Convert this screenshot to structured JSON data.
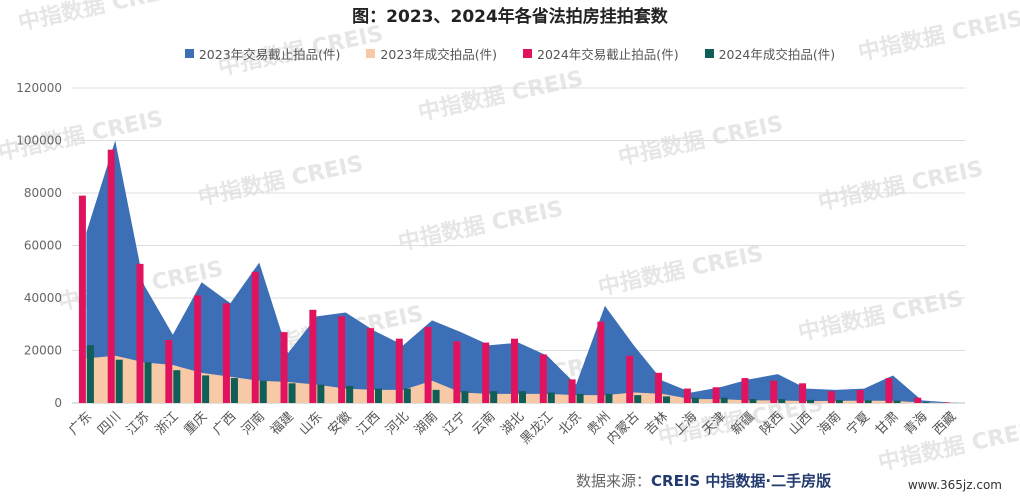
{
  "title": "图：2023、2024年各省法拍房挂拍套数",
  "source_label": "数据来源：",
  "source_name": "CREIS 中指数据·二手房版",
  "site_watermark": "www.365jz.com",
  "colors": {
    "s2023_listed": "#3d6fb6",
    "s2023_sold": "#f7c9a7",
    "s2024_listed": "#e0135e",
    "s2024_sold": "#0f5e57"
  },
  "chart_data": {
    "type": "area+bar",
    "title": "图：2023、2024年各省法拍房挂拍套数",
    "ylim": [
      0,
      120000
    ],
    "yticks": [
      0,
      20000,
      40000,
      60000,
      80000,
      100000,
      120000
    ],
    "grid": true,
    "legend_position": "top",
    "categories": [
      "广东",
      "四川",
      "江苏",
      "浙江",
      "重庆",
      "广西",
      "河南",
      "福建",
      "山东",
      "安徽",
      "江西",
      "河北",
      "湖南",
      "辽宁",
      "云南",
      "湖北",
      "黑龙江",
      "北京",
      "贵州",
      "内蒙古",
      "吉林",
      "上海",
      "天津",
      "新疆",
      "陕西",
      "山西",
      "海南",
      "宁夏",
      "甘肃",
      "青海",
      "西藏"
    ],
    "series": [
      {
        "name": "2023年交易截止拍品(件)",
        "kind": "area",
        "values": [
          65000,
          100000,
          45000,
          26000,
          46000,
          38000,
          53500,
          19000,
          33000,
          34500,
          27500,
          22000,
          31500,
          27000,
          22000,
          23000,
          18000,
          7000,
          37000,
          22000,
          8500,
          4000,
          6000,
          9000,
          11000,
          5500,
          5000,
          5500,
          10500,
          1000,
          200
        ]
      },
      {
        "name": "2023年成交拍品(件)",
        "kind": "area",
        "values": [
          17000,
          18000,
          15500,
          14500,
          11500,
          10000,
          8500,
          8000,
          7000,
          5500,
          5000,
          5000,
          8500,
          4000,
          3500,
          3500,
          3500,
          3000,
          3000,
          4000,
          3500,
          1500,
          1500,
          1000,
          1000,
          700,
          800,
          900,
          800,
          200,
          0
        ]
      },
      {
        "name": "2024年交易截止拍品(件)",
        "kind": "bar",
        "values": [
          79000,
          96500,
          53000,
          24000,
          41000,
          38000,
          50000,
          27000,
          35500,
          33000,
          28500,
          24500,
          29000,
          23500,
          23000,
          24500,
          18500,
          9000,
          31000,
          18000,
          11500,
          5500,
          6000,
          9500,
          8500,
          7500,
          4500,
          5000,
          9500,
          2000,
          200
        ]
      },
      {
        "name": "2024年成交拍品(件)",
        "kind": "bar",
        "values": [
          22000,
          16500,
          15500,
          12500,
          10500,
          9500,
          8500,
          7500,
          7000,
          6500,
          5500,
          5500,
          5000,
          4500,
          4500,
          4500,
          4000,
          3500,
          3500,
          3000,
          2500,
          2000,
          2000,
          1500,
          1500,
          1200,
          1100,
          1000,
          900,
          300,
          50
        ]
      }
    ]
  }
}
